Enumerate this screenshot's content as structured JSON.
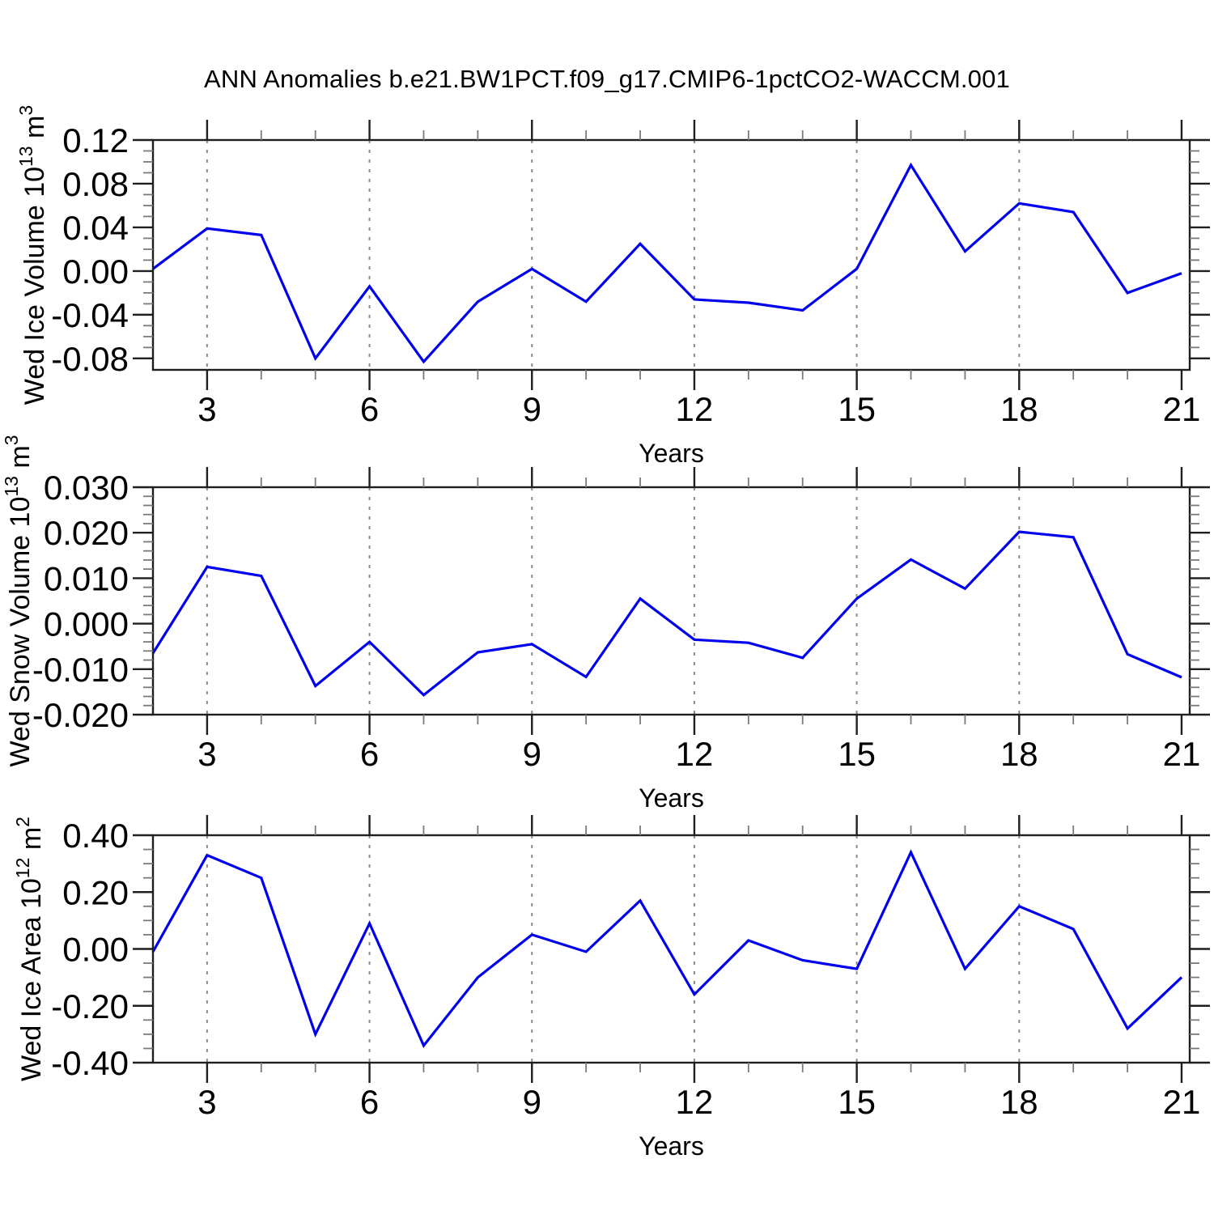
{
  "title": "ANN Anomalies b.e21.BW1PCT.f09_g17.CMIP6-1pctCO2-WACCM.001",
  "colors": {
    "line": "#0000ee",
    "grid": "#8c8c8c",
    "frame": "#1f1f1f",
    "background": "#ffffff"
  },
  "chart_data": [
    {
      "type": "line",
      "name": "wed-ice-volume",
      "ylabel": "Wed Ice Volume 10^13 m^3",
      "ylabel_parts": [
        {
          "t": "Wed Ice Volume 10"
        },
        {
          "s": "13"
        },
        {
          "t": " m"
        },
        {
          "s": "3"
        }
      ],
      "xlabel": "Years",
      "x": [
        2,
        3,
        4,
        5,
        6,
        7,
        8,
        9,
        10,
        11,
        12,
        13,
        14,
        15,
        16,
        17,
        18,
        19,
        20,
        21
      ],
      "values": [
        0.002,
        0.039,
        0.033,
        -0.08,
        -0.014,
        -0.083,
        -0.028,
        0.002,
        -0.028,
        0.025,
        -0.026,
        -0.029,
        -0.036,
        0.002,
        0.097,
        0.018,
        0.062,
        0.054,
        -0.02,
        -0.002
      ],
      "xlim": [
        2,
        21.15
      ],
      "ylim": [
        -0.0905,
        0.12
      ],
      "xticks": [
        3,
        6,
        9,
        12,
        15,
        18,
        21
      ],
      "x_minor_step": 1,
      "grid_x": [
        3,
        6,
        9,
        12,
        15,
        18
      ],
      "yticks": [
        -0.08,
        -0.04,
        0,
        0.04,
        0.08,
        0.12
      ],
      "ytick_labels": [
        "-0.08",
        "-0.04",
        "0.00",
        "0.04",
        "0.08",
        "0.12"
      ],
      "y_minor_step": 0.01
    },
    {
      "type": "line",
      "name": "wed-snow-volume",
      "ylabel": "Wed Snow Volume 10^13 m^3",
      "ylabel_parts": [
        {
          "t": "Wed Snow Volume 10"
        },
        {
          "s": "13"
        },
        {
          "t": " m"
        },
        {
          "s": "3"
        }
      ],
      "xlabel": "Years",
      "x": [
        2,
        3,
        4,
        5,
        6,
        7,
        8,
        9,
        10,
        11,
        12,
        13,
        14,
        15,
        16,
        17,
        18,
        19,
        20,
        21
      ],
      "values": [
        -0.0065,
        0.0125,
        0.0105,
        -0.0137,
        -0.004,
        -0.0157,
        -0.0063,
        -0.0045,
        -0.0117,
        0.0055,
        -0.0035,
        -0.0042,
        -0.0075,
        0.0055,
        0.0141,
        0.0077,
        0.0202,
        0.019,
        -0.0067,
        -0.0118
      ],
      "xlim": [
        2,
        21.15
      ],
      "ylim": [
        -0.02,
        0.03
      ],
      "xticks": [
        3,
        6,
        9,
        12,
        15,
        18,
        21
      ],
      "x_minor_step": 1,
      "grid_x": [
        3,
        6,
        9,
        12,
        15,
        18
      ],
      "yticks": [
        -0.02,
        -0.01,
        0,
        0.01,
        0.02,
        0.03
      ],
      "ytick_labels": [
        "-0.020",
        "-0.010",
        "0.000",
        "0.010",
        "0.020",
        "0.030"
      ],
      "y_minor_step": 0.002
    },
    {
      "type": "line",
      "name": "wed-ice-area",
      "ylabel": "Wed Ice Area 10^12 m^2",
      "ylabel_parts": [
        {
          "t": "Wed Ice Area 10"
        },
        {
          "s": "12"
        },
        {
          "t": " m"
        },
        {
          "s": "2"
        }
      ],
      "xlabel": "Years",
      "x": [
        2,
        3,
        4,
        5,
        6,
        7,
        8,
        9,
        10,
        11,
        12,
        13,
        14,
        15,
        16,
        17,
        18,
        19,
        20,
        21
      ],
      "values": [
        -0.01,
        0.33,
        0.25,
        -0.3,
        0.09,
        -0.34,
        -0.1,
        0.05,
        -0.01,
        0.17,
        -0.16,
        0.03,
        -0.04,
        -0.07,
        0.34,
        -0.07,
        0.15,
        0.07,
        -0.28,
        -0.1
      ],
      "xlim": [
        2,
        21.15
      ],
      "ylim": [
        -0.4,
        0.4
      ],
      "xticks": [
        3,
        6,
        9,
        12,
        15,
        18,
        21
      ],
      "x_minor_step": 1,
      "grid_x": [
        3,
        6,
        9,
        12,
        15,
        18
      ],
      "yticks": [
        -0.4,
        -0.2,
        0,
        0.2,
        0.4
      ],
      "ytick_labels": [
        "-0.40",
        "-0.20",
        "0.00",
        "0.20",
        "0.40"
      ],
      "y_minor_step": 0.05
    }
  ]
}
